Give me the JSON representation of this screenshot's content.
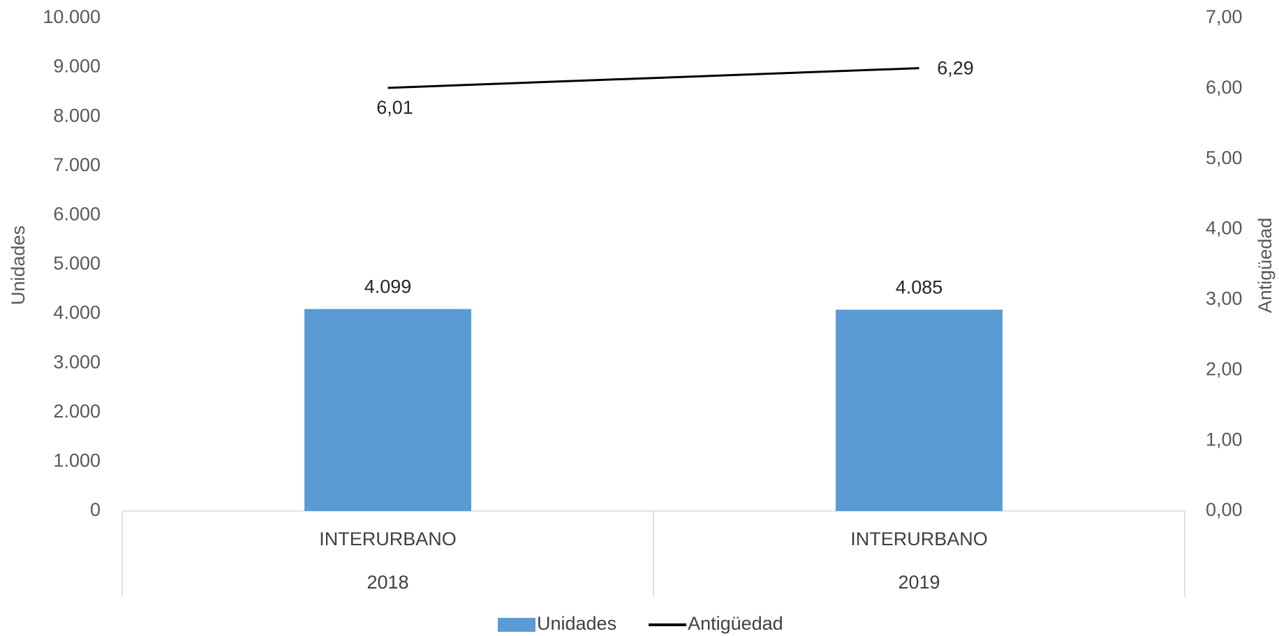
{
  "chart_data": {
    "type": "combo",
    "categories": [
      "INTERURBANO",
      "INTERURBANO"
    ],
    "category_groups": [
      "2018",
      "2019"
    ],
    "ylabel": "Unidades",
    "y2label": "Antigüedad",
    "ylim": [
      0,
      10000
    ],
    "yticks": [
      0,
      {
        "value": 1000,
        "label": "1.000"
      },
      {
        "value": 2000,
        "label": "2.000"
      },
      {
        "value": 3000,
        "label": "3.000"
      },
      {
        "value": 4000,
        "label": "4.000"
      },
      {
        "value": 5000,
        "label": "5.000"
      },
      {
        "value": 6000,
        "label": "6.000"
      },
      {
        "value": 7000,
        "label": "7.000"
      },
      {
        "value": 8000,
        "label": "8.000"
      },
      {
        "value": 9000,
        "label": "9.000"
      },
      {
        "value": 10000,
        "label": "10.000"
      }
    ],
    "y2lim": [
      0,
      7
    ],
    "y2ticks": [
      {
        "value": 0,
        "label": "0,00"
      },
      {
        "value": 1,
        "label": "1,00"
      },
      {
        "value": 2,
        "label": "2,00"
      },
      {
        "value": 3,
        "label": "3,00"
      },
      {
        "value": 4,
        "label": "4,00"
      },
      {
        "value": 5,
        "label": "5,00"
      },
      {
        "value": 6,
        "label": "6,00"
      },
      {
        "value": 7,
        "label": "7,00"
      }
    ],
    "series": [
      {
        "name": "Unidades",
        "type": "bar",
        "color": "#5b9bd5",
        "values": [
          4099,
          4085
        ],
        "value_labels": [
          "4.099",
          "4.085"
        ]
      },
      {
        "name": "Antigüedad",
        "type": "line",
        "axis": "y2",
        "color": "#000000",
        "values": [
          6.01,
          6.29
        ],
        "value_labels": [
          "6,01",
          "6,29"
        ]
      }
    ],
    "legend": "bottom"
  }
}
